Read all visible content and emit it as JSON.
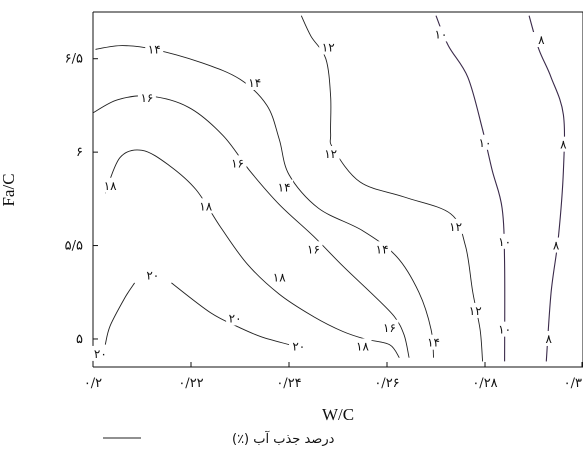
{
  "chart_data": {
    "type": "contour",
    "xlabel": "W/C",
    "ylabel": "Fa/C",
    "xlim": [
      0.2,
      0.3
    ],
    "ylim": [
      4.85,
      6.75
    ],
    "x_ticks": [
      {
        "value": 0.2,
        "label": "۰/۲"
      },
      {
        "value": 0.22,
        "label": "۰/۲۲"
      },
      {
        "value": 0.24,
        "label": "۰/۲۴"
      },
      {
        "value": 0.26,
        "label": "۰/۲۶"
      },
      {
        "value": 0.28,
        "label": "۰/۲۸"
      },
      {
        "value": 0.3,
        "label": "۰/۳"
      }
    ],
    "y_ticks": [
      {
        "value": 5.0,
        "label": "۵"
      },
      {
        "value": 5.5,
        "label": "۵/۵"
      },
      {
        "value": 6.0,
        "label": "۶"
      },
      {
        "value": 6.5,
        "label": "۶/۵"
      }
    ],
    "legend": {
      "label": "درصد جذب آب (٪)"
    },
    "contours": [
      {
        "level": 20,
        "label": "۲۰",
        "dark": false,
        "points": [
          [
            0.2025,
            4.97
          ],
          [
            0.2035,
            5.07
          ],
          [
            0.2065,
            5.22
          ],
          [
            0.2085,
            5.3
          ]
        ],
        "labels": [
          [
            0.2015,
            4.92
          ],
          [
            0.2122,
            5.34
          ]
        ]
      },
      {
        "level": 20,
        "label": "۲۰",
        "dark": false,
        "points": [
          [
            0.216,
            5.3
          ],
          [
            0.224,
            5.14
          ],
          [
            0.23,
            5.06
          ],
          [
            0.2345,
            5.01
          ],
          [
            0.24,
            4.97
          ]
        ],
        "labels": [
          [
            0.229,
            5.11
          ],
          [
            0.242,
            4.96
          ]
        ]
      },
      {
        "level": 18,
        "label": "۱۸",
        "dark": false,
        "points": [
          [
            0.2025,
            5.78
          ],
          [
            0.2055,
            5.97
          ],
          [
            0.21,
            6.01
          ],
          [
            0.2155,
            5.93
          ],
          [
            0.221,
            5.8
          ],
          [
            0.226,
            5.6
          ],
          [
            0.2315,
            5.4
          ],
          [
            0.238,
            5.24
          ],
          [
            0.245,
            5.12
          ],
          [
            0.251,
            5.04
          ],
          [
            0.2555,
            5.0
          ],
          [
            0.2605,
            4.97
          ],
          [
            0.2625,
            4.9
          ]
        ],
        "labels": [
          [
            0.2035,
            5.82
          ],
          [
            0.223,
            5.71
          ],
          [
            0.238,
            5.33
          ],
          [
            0.255,
            4.96
          ]
        ]
      },
      {
        "level": 16,
        "label": "۱۶",
        "dark": false,
        "points": [
          [
            0.2,
            6.21
          ],
          [
            0.205,
            6.28
          ],
          [
            0.2115,
            6.3
          ],
          [
            0.2195,
            6.24
          ],
          [
            0.2265,
            6.09
          ],
          [
            0.232,
            5.9
          ],
          [
            0.238,
            5.72
          ],
          [
            0.245,
            5.55
          ],
          [
            0.251,
            5.39
          ],
          [
            0.257,
            5.24
          ],
          [
            0.2615,
            5.12
          ],
          [
            0.2635,
            5.02
          ],
          [
            0.2645,
            4.9
          ]
        ],
        "labels": [
          [
            0.211,
            6.29
          ],
          [
            0.2295,
            5.94
          ],
          [
            0.245,
            5.48
          ],
          [
            0.2605,
            5.06
          ]
        ]
      },
      {
        "level": 14,
        "label": "۱۴",
        "dark": false,
        "points": [
          [
            0.2005,
            6.55
          ],
          [
            0.206,
            6.57
          ],
          [
            0.2125,
            6.55
          ],
          [
            0.222,
            6.48
          ],
          [
            0.23,
            6.39
          ],
          [
            0.2355,
            6.25
          ],
          [
            0.238,
            6.07
          ],
          [
            0.24,
            5.88
          ],
          [
            0.246,
            5.7
          ],
          [
            0.255,
            5.58
          ],
          [
            0.262,
            5.44
          ],
          [
            0.2665,
            5.25
          ],
          [
            0.269,
            5.05
          ],
          [
            0.2695,
            4.9
          ]
        ],
        "labels": [
          [
            0.2125,
            6.55
          ],
          [
            0.233,
            6.37
          ],
          [
            0.239,
            5.81
          ],
          [
            0.259,
            5.48
          ],
          [
            0.2695,
            4.98
          ]
        ]
      },
      {
        "level": 12,
        "label": "۱۲",
        "dark": false,
        "points": [
          [
            0.2425,
            6.73
          ],
          [
            0.2445,
            6.62
          ],
          [
            0.2475,
            6.5
          ],
          [
            0.2485,
            6.3
          ],
          [
            0.2485,
            6.1
          ],
          [
            0.249,
            6.02
          ],
          [
            0.2545,
            5.84
          ],
          [
            0.2635,
            5.76
          ],
          [
            0.273,
            5.67
          ],
          [
            0.276,
            5.5
          ],
          [
            0.2775,
            5.25
          ],
          [
            0.279,
            5.05
          ],
          [
            0.2795,
            4.88
          ]
        ],
        "labels": [
          [
            0.248,
            6.56
          ],
          [
            0.2485,
            5.99
          ],
          [
            0.274,
            5.6
          ],
          [
            0.278,
            5.15
          ]
        ]
      },
      {
        "level": 10,
        "label": "۱۰",
        "dark": true,
        "points": [
          [
            0.27,
            6.73
          ],
          [
            0.2725,
            6.57
          ],
          [
            0.2765,
            6.4
          ],
          [
            0.2795,
            6.12
          ],
          [
            0.2815,
            5.9
          ],
          [
            0.2835,
            5.7
          ],
          [
            0.284,
            5.4
          ],
          [
            0.284,
            4.88
          ]
        ],
        "labels": [
          [
            0.271,
            6.63
          ],
          [
            0.28,
            6.05
          ],
          [
            0.284,
            5.52
          ],
          [
            0.284,
            5.05
          ]
        ]
      },
      {
        "level": 8,
        "label": "۸",
        "dark": true,
        "points": [
          [
            0.289,
            6.73
          ],
          [
            0.291,
            6.55
          ],
          [
            0.2935,
            6.4
          ],
          [
            0.296,
            6.2
          ],
          [
            0.296,
            5.9
          ],
          [
            0.295,
            5.55
          ],
          [
            0.2935,
            5.25
          ],
          [
            0.2925,
            4.88
          ]
        ],
        "labels": [
          [
            0.2915,
            6.6
          ],
          [
            0.296,
            6.04
          ],
          [
            0.2945,
            5.5
          ],
          [
            0.293,
            5.0
          ]
        ]
      }
    ]
  }
}
